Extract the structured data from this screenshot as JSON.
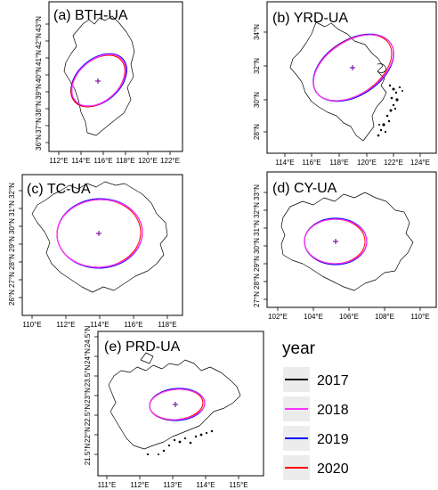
{
  "panels": [
    {
      "id": "bth",
      "label": "(a) BTH-UA",
      "x_ticks": [
        "112°E",
        "114°E",
        "116°E",
        "118°E",
        "120°E",
        "122°E"
      ],
      "y_ticks": [
        "36°N",
        "37°N",
        "38°N",
        "39°N",
        "40°N",
        "41°N",
        "42°N",
        "43°N"
      ]
    },
    {
      "id": "yrd",
      "label": "(b) YRD-UA",
      "x_ticks": [
        "114°E",
        "116°E",
        "118°E",
        "120°E",
        "122°E",
        "124°E"
      ],
      "y_ticks": [
        "28°N",
        "30°N",
        "32°N",
        "34°N"
      ]
    },
    {
      "id": "tc",
      "label": "(c) TC-UA",
      "x_ticks": [
        "110°E",
        "112°E",
        "114°E",
        "116°E",
        "118°E"
      ],
      "y_ticks": [
        "26°N",
        "27°N",
        "28°N",
        "29°N",
        "30°N",
        "31°N",
        "32°N"
      ]
    },
    {
      "id": "cy",
      "label": "(d) CY-UA",
      "x_ticks": [
        "102°E",
        "104°E",
        "106°E",
        "108°E",
        "110°E"
      ],
      "y_ticks": [
        "27°N",
        "28°N",
        "29°N",
        "30°N",
        "31°N",
        "32°N",
        "33°N"
      ]
    },
    {
      "id": "prd",
      "label": "(e) PRD-UA",
      "x_ticks": [
        "111°E",
        "112°E",
        "113°E",
        "114°E",
        "115°E"
      ],
      "y_ticks": [
        "21.5°N",
        "22°N",
        "22.5°N",
        "23°N",
        "23.5°N",
        "24°N",
        "24.5°N"
      ]
    }
  ],
  "legend": {
    "title": "year",
    "items": [
      {
        "label": "2017",
        "color": "#000000"
      },
      {
        "label": "2018",
        "color": "#ff33ff"
      },
      {
        "label": "2019",
        "color": "#0000ff"
      },
      {
        "label": "2020",
        "color": "#ff0000"
      }
    ]
  }
}
